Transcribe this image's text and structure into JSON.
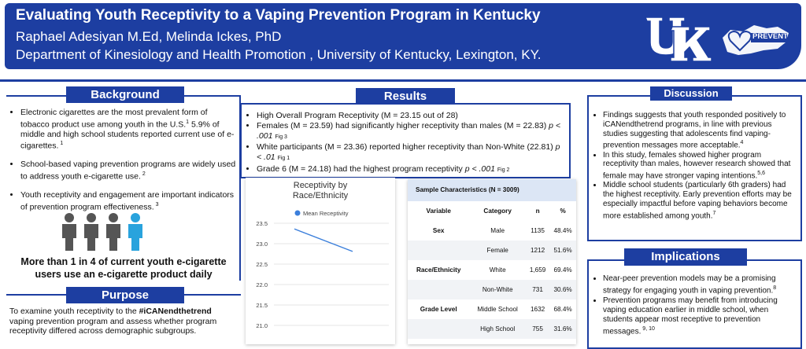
{
  "header": {
    "title": "Evaluating Youth Receptivity to a Vaping Prevention Program in Kentucky",
    "authors": "Raphael Adesiyan M.Ed, Melinda Ickes, PhD",
    "department": "Department of Kinesiology and Health Promotion , University of Kentucky, Lexington, KY.",
    "logo_text": "PREVENT"
  },
  "background": {
    "heading": "Background",
    "b1_text": "Electronic cigarettes are the most prevalent form of tobacco product use among youth in the U.S.",
    "b1_sup": "1",
    "b1_text2": " 5.9% of middle and high school students reported current use of e-cigarettes.",
    "b1_sup2": " 1",
    "b2_text": "School-based vaping prevention programs are widely used to address youth e-cigarette use.",
    "b2_sup": " 2",
    "b3_text": "Youth receptivity and engagement are important indicators of prevention program effectiveness.",
    "b3_sup": " 3",
    "stat": "More than 1 in 4 of current youth e-cigarette users use an e-cigarette product daily"
  },
  "purpose": {
    "heading": "Purpose",
    "text_before": "To examine youth receptivity to the ",
    "hashtag": "#iCANendthetrend",
    "text_after": " vaping prevention program and assess whether program receptivity differed across demographic subgroups."
  },
  "results": {
    "heading": "Results",
    "r1": "High Overall Program Receptivity (M = 23.15 out of 28)",
    "r2": "Females (M = 23.59) had significantly higher receptivity than males (M = 22.83) ",
    "r2_p": "p < .001",
    "r2_fig": "Fig 3",
    "r3": "White participants (M = 23.36) reported higher receptivity than Non-White (22.81) ",
    "r3_p": "p < .01",
    "r3_fig": "Fig 1",
    "r4": "Grade 6 (M = 24.18) had the highest program receptivity ",
    "r4_p": "p < .001",
    "r4_fig": "Fig 2"
  },
  "chart_data": {
    "type": "line",
    "title": "Receptivity by Race/Ethnicity",
    "series": [
      {
        "name": "Mean Receptivity",
        "values": [
          23.36,
          22.81
        ]
      }
    ],
    "yticks": [
      23.5,
      23.0,
      22.5,
      22.0,
      21.5,
      21.0
    ],
    "ylim": [
      20.5,
      23.5
    ],
    "legend": "top",
    "color": "#3b7fdb"
  },
  "sample_table": {
    "title": "Sample Characteristics (N = 3009)",
    "headers": [
      "Variable",
      "Category",
      "n",
      "%"
    ],
    "rows": [
      [
        "Sex",
        "Male",
        "1135",
        "48.4%"
      ],
      [
        "",
        "Female",
        "1212",
        "51.6%"
      ],
      [
        "Race/Ethnicity",
        "White",
        "1,659",
        "69.4%"
      ],
      [
        "",
        "Non-White",
        "731",
        "30.6%"
      ],
      [
        "Grade Level",
        "Middle School",
        "1632",
        "68.4%"
      ],
      [
        "",
        "High School",
        "755",
        "31.6%"
      ]
    ]
  },
  "discussion": {
    "heading": "Discussion",
    "d1": "Findings suggests that  youth responded positively to iCANendthetrend programs, in line with previous studies suggesting that adolescents find vaping-prevention messages more acceptable.",
    "d1_sup": "4",
    "d2": "In this study, females showed higher program receptivity than males, however research showed that female may have stronger vaping intentions.",
    "d2_sup": "5,6",
    "d3": "Middle school students (particularly 6th graders) had the highest receptivity. Early prevention efforts may be especially impactful before vaping behaviors become more established among youth.",
    "d3_sup": "7"
  },
  "implications": {
    "heading": "Implications",
    "i1": "Near-peer prevention models may be a promising strategy for engaging youth in vaping prevention.",
    "i1_sup": "8",
    "i2": "Prevention programs may benefit from introducing vaping education earlier in middle school, when students appear most receptive to prevention messages.",
    "i2_sup": " 9, 10"
  }
}
